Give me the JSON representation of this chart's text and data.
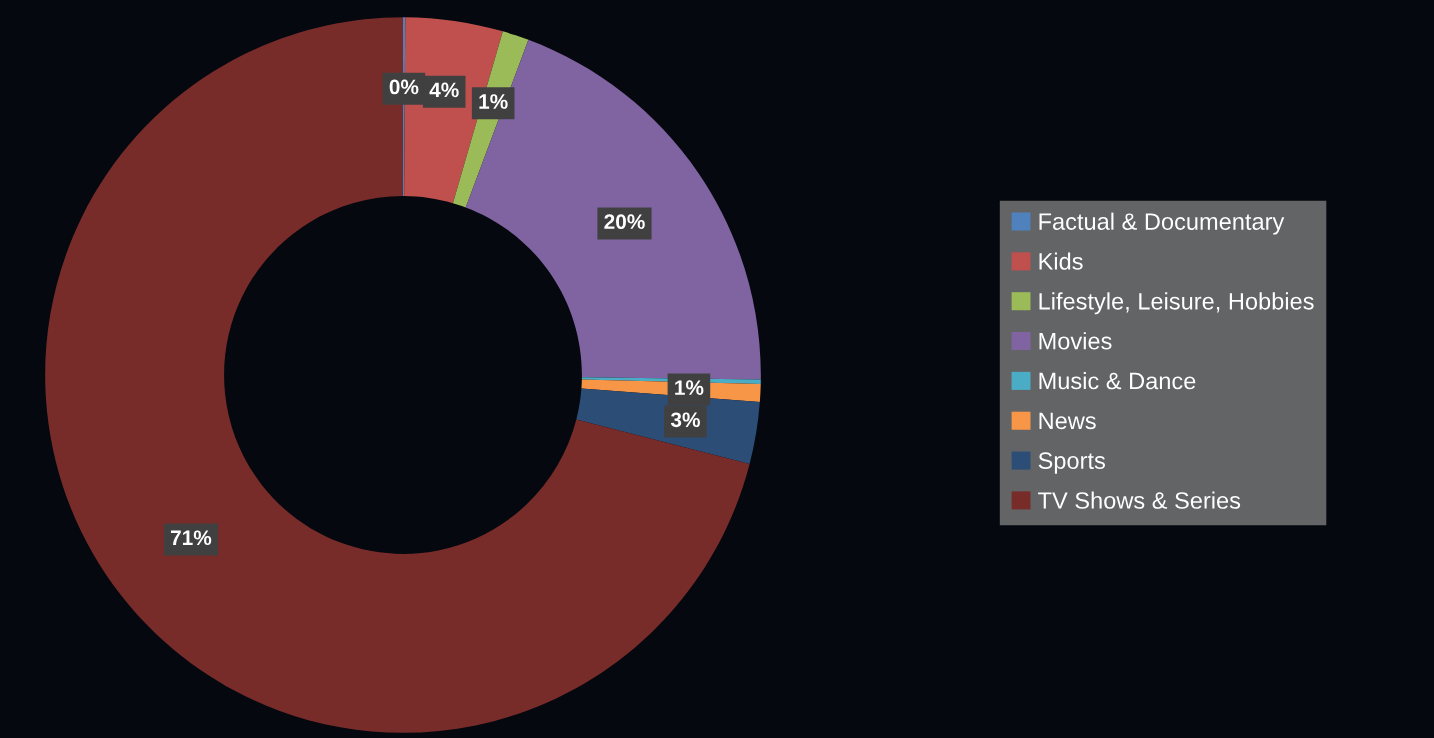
{
  "chart_data": {
    "type": "donut",
    "categories": [
      "Factual & Documentary",
      "Kids",
      "Lifestyle, Leisure, Hobbies",
      "Movies",
      "Music & Dance",
      "News",
      "Sports",
      "TV Shows & Series"
    ],
    "values": [
      0.1,
      4.4,
      1.2,
      19.5,
      0.2,
      0.8,
      2.8,
      71.0
    ],
    "colors": [
      "#4f81bd",
      "#c0504d",
      "#9bbb59",
      "#8064a2",
      "#4bacc6",
      "#f79646",
      "#2c4d75",
      "#772c2a"
    ],
    "value_labels": [
      "0%",
      "4%",
      "1%",
      "20%",
      null,
      "1%",
      "3%",
      "71%"
    ],
    "legend": "right"
  }
}
